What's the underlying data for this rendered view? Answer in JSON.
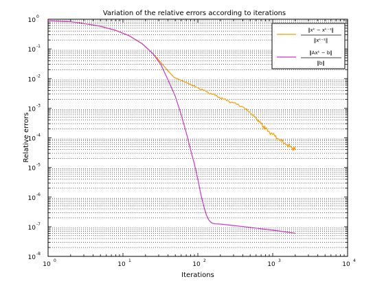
{
  "chart_data": {
    "type": "line",
    "title": "Variation of the relative errors according to iterations",
    "xlabel": "Iterations",
    "ylabel": "Relative errors",
    "xscale": "log",
    "yscale": "log",
    "xlim": [
      1,
      10000
    ],
    "ylim": [
      1e-08,
      1
    ],
    "grid": "minor dotted",
    "legend_position": "top-right",
    "x_tick_labels": [
      {
        "base": "10",
        "exp": "0",
        "value": 1
      },
      {
        "base": "10",
        "exp": "1",
        "value": 10
      },
      {
        "base": "10",
        "exp": "2",
        "value": 100
      },
      {
        "base": "10",
        "exp": "3",
        "value": 1000
      },
      {
        "base": "10",
        "exp": "4",
        "value": 10000
      }
    ],
    "y_tick_labels": [
      {
        "base": "10",
        "exp": "0",
        "value": 1
      },
      {
        "base": "10",
        "exp": "-1",
        "value": 0.1
      },
      {
        "base": "10",
        "exp": "-2",
        "value": 0.01
      },
      {
        "base": "10",
        "exp": "-3",
        "value": 0.001
      },
      {
        "base": "10",
        "exp": "-4",
        "value": 0.0001
      },
      {
        "base": "10",
        "exp": "-5",
        "value": 1e-05
      },
      {
        "base": "10",
        "exp": "-6",
        "value": 1e-06
      },
      {
        "base": "10",
        "exp": "-7",
        "value": 1e-07
      },
      {
        "base": "10",
        "exp": "-8",
        "value": 1e-08
      }
    ],
    "series": [
      {
        "color": "#ff9900",
        "legend_numerator": "‖xᵏ − xᵏ⁻¹‖",
        "legend_denominator": "‖xᵏ⁻¹‖",
        "x": [
          1,
          2,
          3,
          5,
          8,
          12,
          18,
          25,
          32,
          40,
          48,
          55,
          65,
          80,
          100,
          130,
          170,
          220,
          300,
          400,
          500,
          600,
          700,
          800,
          1000,
          1200,
          1500,
          1800,
          2000
        ],
        "y": [
          0.9,
          0.82,
          0.72,
          0.58,
          0.42,
          0.28,
          0.15,
          0.07,
          0.035,
          0.018,
          0.011,
          0.0095,
          0.008,
          0.0062,
          0.0048,
          0.0036,
          0.0027,
          0.002,
          0.0015,
          0.0011,
          0.0007,
          0.00045,
          0.0003,
          0.0002,
          0.00013,
          9e-05,
          6e-05,
          4.5e-05,
          4e-05
        ]
      },
      {
        "color": "#cc33cc",
        "legend_numerator": "‖Axᵏ − b‖",
        "legend_denominator": "‖b‖",
        "x": [
          1,
          2,
          3,
          5,
          8,
          12,
          18,
          25,
          32,
          40,
          50,
          60,
          70,
          80,
          90,
          100,
          110,
          120,
          130,
          140,
          150,
          160,
          170,
          200,
          300,
          500,
          800,
          1200,
          2000
        ],
        "y": [
          0.9,
          0.82,
          0.72,
          0.58,
          0.42,
          0.28,
          0.15,
          0.07,
          0.03,
          0.009,
          0.0025,
          0.0006,
          0.00015,
          4e-05,
          1.3e-05,
          4e-06,
          1.2e-06,
          5e-07,
          2.5e-07,
          1.7e-07,
          1.4e-07,
          1.3e-07,
          1.25e-07,
          1.23e-07,
          1.1e-07,
          9.5e-08,
          8.2e-08,
          7.2e-08,
          6e-08
        ]
      }
    ]
  }
}
